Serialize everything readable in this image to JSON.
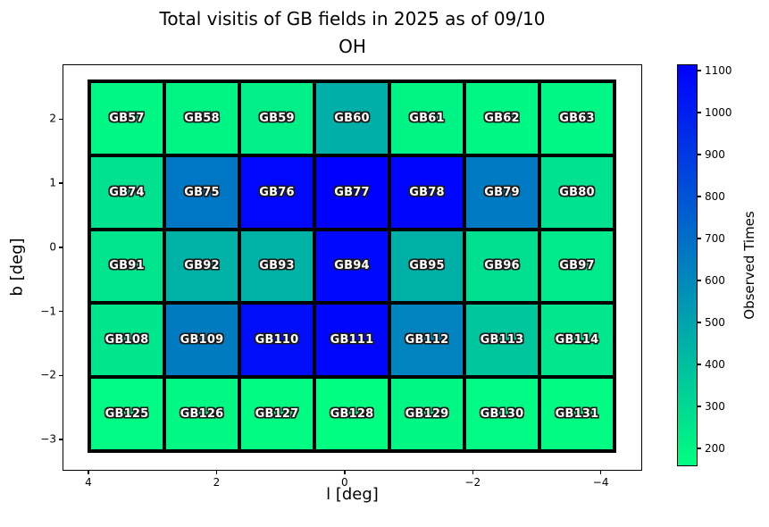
{
  "chart_data": {
    "type": "heatmap",
    "title_line1": "Total visitis of GB fields in 2025 as of 09/10",
    "title_line2": "OH",
    "xlabel": "l [deg]",
    "ylabel": "b [deg]",
    "colorbar_label": "Observed Times",
    "colormap": "winter_r",
    "vmin": 155,
    "vmax": 1113,
    "x_axis": {
      "range": [
        4.39,
        -4.66
      ],
      "tick_values": [
        4,
        2,
        0,
        -2,
        -4
      ],
      "tick_labels": [
        "4",
        "2",
        "0",
        "−2",
        "−4"
      ]
    },
    "y_axis": {
      "range": [
        2.84,
        -3.5
      ],
      "tick_values": [
        2,
        1,
        0,
        -1,
        -2,
        -3
      ],
      "tick_labels": [
        "2",
        "1",
        "0",
        "−1",
        "−2",
        "−3"
      ]
    },
    "colorbar_ticks": [
      200,
      300,
      400,
      500,
      600,
      700,
      800,
      900,
      1000,
      1100
    ],
    "colors": {
      "cb_top": "#0000ff",
      "cb_mid": "#007fbf",
      "cb_bottom": "#00ff80",
      "cell_border": "#000000"
    },
    "grid": {
      "columns": 7,
      "rows": 5,
      "cells": [
        [
          {
            "label": "GB57",
            "value": 190
          },
          {
            "label": "GB58",
            "value": 195
          },
          {
            "label": "GB59",
            "value": 210
          },
          {
            "label": "GB60",
            "value": 455
          },
          {
            "label": "GB61",
            "value": 195
          },
          {
            "label": "GB62",
            "value": 185
          },
          {
            "label": "GB63",
            "value": 190
          }
        ],
        [
          {
            "label": "GB74",
            "value": 265
          },
          {
            "label": "GB75",
            "value": 665
          },
          {
            "label": "GB76",
            "value": 1085
          },
          {
            "label": "GB77",
            "value": 1113
          },
          {
            "label": "GB78",
            "value": 1095
          },
          {
            "label": "GB79",
            "value": 655
          },
          {
            "label": "GB80",
            "value": 265
          }
        ],
        [
          {
            "label": "GB91",
            "value": 255
          },
          {
            "label": "GB92",
            "value": 445
          },
          {
            "label": "GB93",
            "value": 440
          },
          {
            "label": "GB94",
            "value": 1080
          },
          {
            "label": "GB95",
            "value": 450
          },
          {
            "label": "GB96",
            "value": 275
          },
          {
            "label": "GB97",
            "value": 235
          }
        ],
        [
          {
            "label": "GB108",
            "value": 250
          },
          {
            "label": "GB109",
            "value": 650
          },
          {
            "label": "GB110",
            "value": 1065
          },
          {
            "label": "GB111",
            "value": 1090
          },
          {
            "label": "GB112",
            "value": 620
          },
          {
            "label": "GB113",
            "value": 370
          },
          {
            "label": "GB114",
            "value": 245
          }
        ],
        [
          {
            "label": "GB125",
            "value": 175
          },
          {
            "label": "GB126",
            "value": 180
          },
          {
            "label": "GB127",
            "value": 170
          },
          {
            "label": "GB128",
            "value": 155
          },
          {
            "label": "GB129",
            "value": 185
          },
          {
            "label": "GB130",
            "value": 175
          },
          {
            "label": "GB131",
            "value": 170
          }
        ]
      ]
    }
  }
}
